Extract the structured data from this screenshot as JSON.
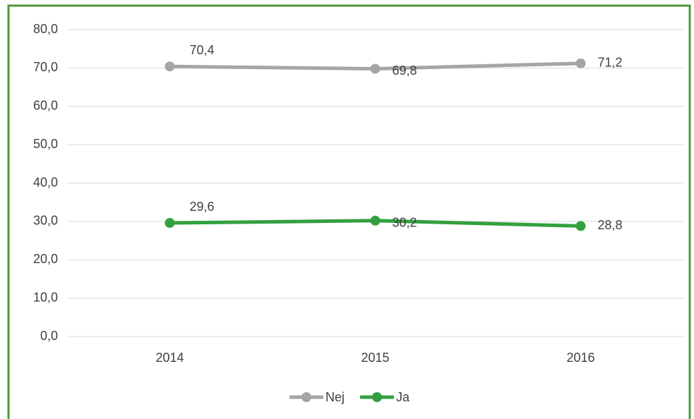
{
  "chart_data": {
    "type": "line",
    "categories": [
      "2014",
      "2015",
      "2016"
    ],
    "series": [
      {
        "name": "Nej",
        "color": "#a5a5a5",
        "values": [
          70.4,
          69.8,
          71.2
        ],
        "value_labels": [
          "70,4",
          "69,8",
          "71,2"
        ]
      },
      {
        "name": "Ja",
        "color": "#33a040",
        "values": [
          29.6,
          30.2,
          28.8
        ],
        "value_labels": [
          "29,6",
          "30,2",
          "28,8"
        ]
      }
    ],
    "ylim": [
      0,
      80
    ],
    "yticks": [
      {
        "value": 0,
        "label": "0,0"
      },
      {
        "value": 10,
        "label": "10,0"
      },
      {
        "value": 20,
        "label": "20,0"
      },
      {
        "value": 30,
        "label": "30,0"
      },
      {
        "value": 40,
        "label": "40,0"
      },
      {
        "value": 50,
        "label": "50,0"
      },
      {
        "value": 60,
        "label": "60,0"
      },
      {
        "value": 70,
        "label": "70,0"
      },
      {
        "value": 80,
        "label": "80,0"
      }
    ],
    "grid": true,
    "legend": "bottom"
  }
}
